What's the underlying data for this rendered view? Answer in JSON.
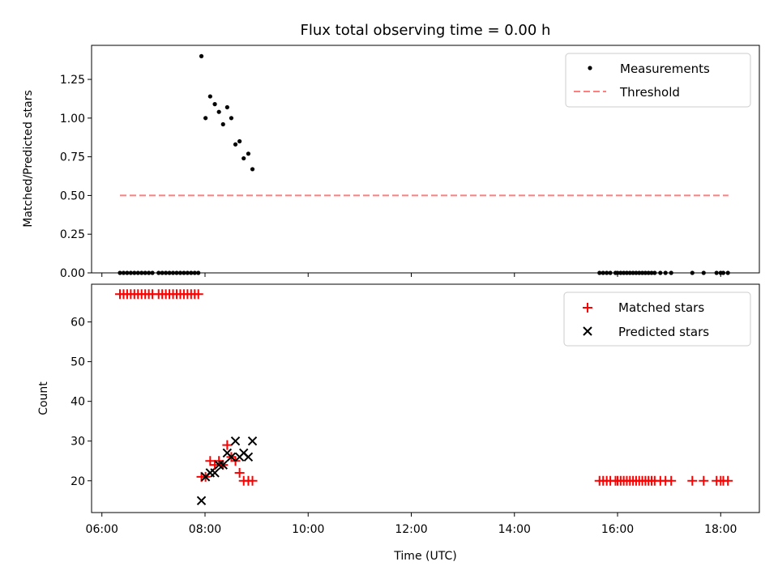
{
  "chart_data": [
    {
      "type": "scatter",
      "title": "Flux total observing time = 0.00 h",
      "xlabel": "",
      "ylabel": "Matched/Predicted stars",
      "xlim": [
        5.8,
        18.75
      ],
      "ylim": [
        0,
        1.47
      ],
      "yticks": [
        0.0,
        0.25,
        0.5,
        0.75,
        1.0,
        1.25
      ],
      "ytick_labels": [
        "0.00",
        "0.25",
        "0.50",
        "0.75",
        "1.00",
        "1.25"
      ],
      "legend": "top-right",
      "series": [
        {
          "name": "Measurements",
          "marker": "dot",
          "color": "#000000",
          "x": [
            6.35,
            6.42,
            6.49,
            6.56,
            6.63,
            6.7,
            6.77,
            6.84,
            6.91,
            6.98,
            7.1,
            7.17,
            7.24,
            7.31,
            7.38,
            7.45,
            7.52,
            7.59,
            7.66,
            7.73,
            7.8,
            7.87,
            7.93,
            8.01,
            8.1,
            8.19,
            8.27,
            8.35,
            8.43,
            8.51,
            8.59,
            8.67,
            8.75,
            8.84,
            8.92,
            15.65,
            15.72,
            15.79,
            15.86,
            15.96,
            16.0,
            16.06,
            16.12,
            16.18,
            16.24,
            16.3,
            16.36,
            16.42,
            16.48,
            16.54,
            16.6,
            16.66,
            16.72,
            16.83,
            16.93,
            17.04,
            17.45,
            17.67,
            17.92,
            18.0,
            18.05,
            18.14
          ],
          "y": [
            0,
            0,
            0,
            0,
            0,
            0,
            0,
            0,
            0,
            0,
            0,
            0,
            0,
            0,
            0,
            0,
            0,
            0,
            0,
            0,
            0,
            0,
            1.4,
            1.0,
            1.14,
            1.09,
            1.04,
            0.96,
            1.07,
            1.0,
            0.83,
            0.85,
            0.74,
            0.77,
            0.67,
            0,
            0,
            0,
            0,
            0,
            0,
            0,
            0,
            0,
            0,
            0,
            0,
            0,
            0,
            0,
            0,
            0,
            0,
            0,
            0,
            0,
            0,
            0,
            0,
            0,
            0,
            0
          ]
        },
        {
          "name": "Threshold",
          "type": "line",
          "style": "dashed",
          "color": "#ff7f7f",
          "x": [
            6.35,
            18.15
          ],
          "y": [
            0.5,
            0.5
          ]
        }
      ]
    },
    {
      "type": "scatter",
      "title": "",
      "xlabel": "Time (UTC)",
      "ylabel": "Count",
      "xlim": [
        5.8,
        18.75
      ],
      "ylim": [
        12,
        69.5
      ],
      "yticks": [
        20,
        30,
        40,
        50,
        60
      ],
      "ytick_labels": [
        "20",
        "30",
        "40",
        "50",
        "60"
      ],
      "xticks": [
        6,
        8,
        10,
        12,
        14,
        16,
        18
      ],
      "xtick_labels": [
        "06:00",
        "08:00",
        "10:00",
        "12:00",
        "14:00",
        "16:00",
        "18:00"
      ],
      "legend": "top-right",
      "series": [
        {
          "name": "Matched stars",
          "marker": "plus",
          "color": "#ff0000",
          "x": [
            6.35,
            6.42,
            6.49,
            6.56,
            6.63,
            6.7,
            6.77,
            6.84,
            6.91,
            6.98,
            7.1,
            7.17,
            7.24,
            7.31,
            7.38,
            7.45,
            7.52,
            7.59,
            7.66,
            7.73,
            7.8,
            7.87,
            7.93,
            8.01,
            8.1,
            8.19,
            8.27,
            8.35,
            8.43,
            8.51,
            8.59,
            8.67,
            8.75,
            8.84,
            8.92,
            15.65,
            15.72,
            15.79,
            15.86,
            15.96,
            16.0,
            16.06,
            16.12,
            16.18,
            16.24,
            16.3,
            16.36,
            16.42,
            16.48,
            16.54,
            16.6,
            16.66,
            16.72,
            16.83,
            16.93,
            17.04,
            17.45,
            17.67,
            17.92,
            18.0,
            18.05,
            18.14
          ],
          "y": [
            67,
            67,
            67,
            67,
            67,
            67,
            67,
            67,
            67,
            67,
            67,
            67,
            67,
            67,
            67,
            67,
            67,
            67,
            67,
            67,
            67,
            67,
            21,
            21,
            25,
            24,
            25,
            24,
            29,
            26,
            25,
            22,
            20,
            20,
            20,
            20,
            20,
            20,
            20,
            20,
            20,
            20,
            20,
            20,
            20,
            20,
            20,
            20,
            20,
            20,
            20,
            20,
            20,
            20,
            20,
            20,
            20,
            20,
            20,
            20,
            20,
            20
          ]
        },
        {
          "name": "Predicted stars",
          "marker": "x",
          "color": "#000000",
          "x": [
            7.93,
            8.01,
            8.1,
            8.19,
            8.27,
            8.35,
            8.43,
            8.51,
            8.59,
            8.67,
            8.75,
            8.84,
            8.92
          ],
          "y": [
            15,
            21,
            22,
            22,
            24,
            24,
            27,
            26,
            30,
            26,
            27,
            26,
            30
          ]
        }
      ]
    }
  ]
}
